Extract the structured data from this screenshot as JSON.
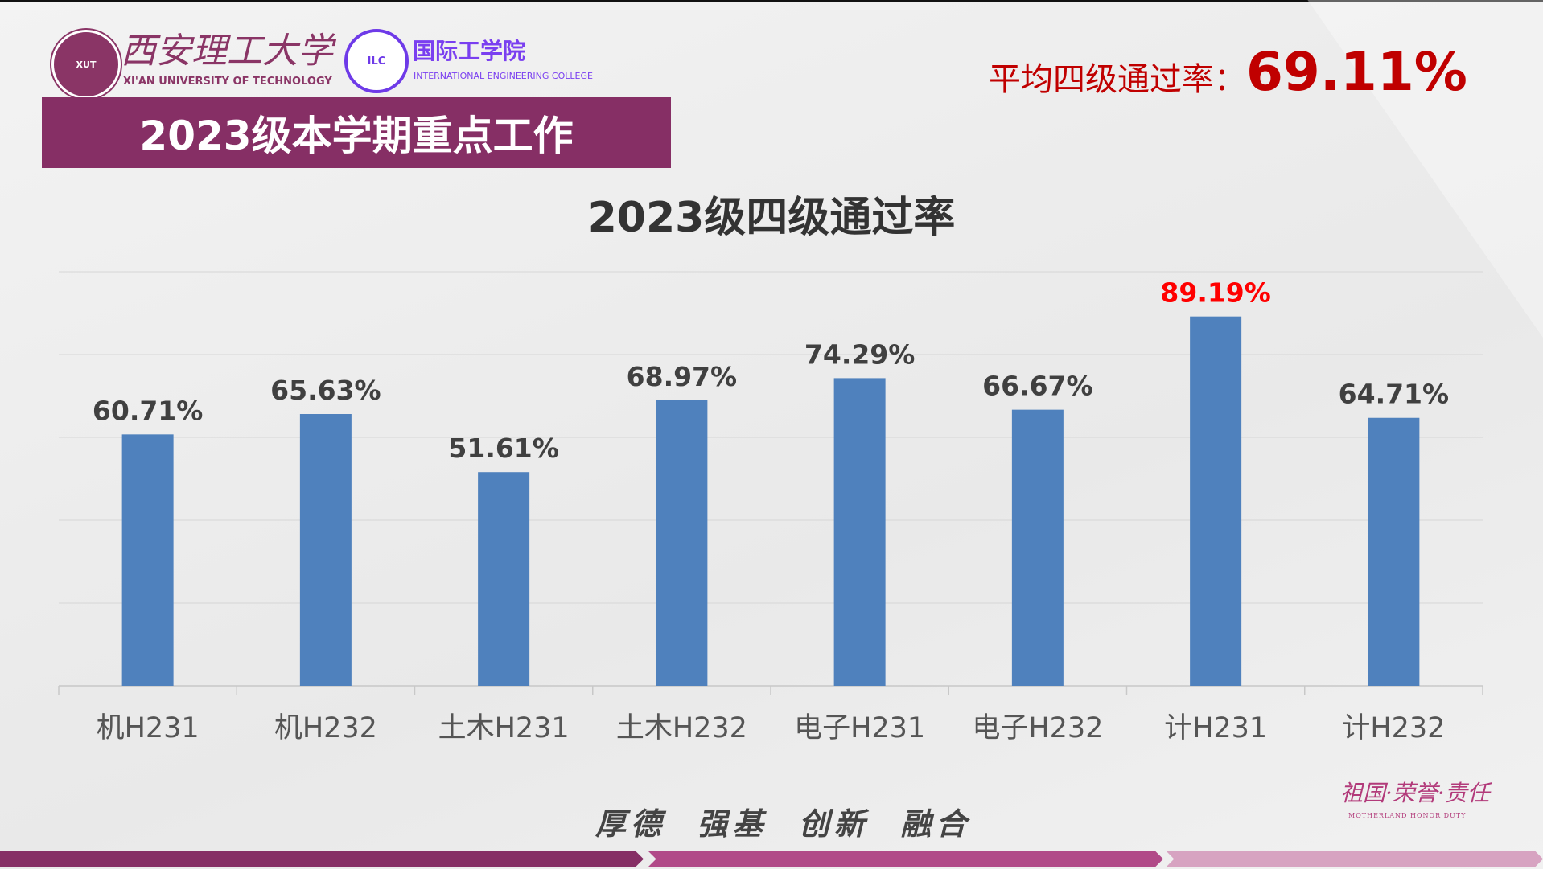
{
  "header": {
    "university_logo_text": "XUT",
    "university_name_cn": "西安理工大学",
    "university_name_en": "XI'AN UNIVERSITY OF TECHNOLOGY",
    "college_logo_text": "ILC",
    "college_name_cn": "国际工学院",
    "college_name_en": "INTERNATIONAL ENGINEERING COLLEGE",
    "banner_title": "2023级本学期重点工作",
    "average_label": "平均四级通过率：",
    "average_value": "69.11%"
  },
  "colors": {
    "brand_purple": "#862f65",
    "bar": "#4f81bd",
    "highlight": "#ff0000",
    "average_red": "#c00000"
  },
  "chart_data": {
    "type": "bar",
    "title": "2023级四级通过率",
    "categories": [
      "机H231",
      "机H232",
      "土木H231",
      "土木H232",
      "电子H231",
      "电子H232",
      "计H231",
      "计H232"
    ],
    "values": [
      60.71,
      65.63,
      51.61,
      68.97,
      74.29,
      66.67,
      89.19,
      64.71
    ],
    "data_labels": [
      "60.71%",
      "65.63%",
      "51.61%",
      "68.97%",
      "74.29%",
      "66.67%",
      "89.19%",
      "64.71%"
    ],
    "highlight_index": 6,
    "ylim": [
      0,
      100
    ],
    "grid": true,
    "y_axis_labels_shown": false
  },
  "footer": {
    "slogan": "厚德  强基  创新  融合",
    "motto_cn": "祖国·荣誉·责任",
    "motto_en": "MOTHERLAND HONOR DUTY"
  }
}
